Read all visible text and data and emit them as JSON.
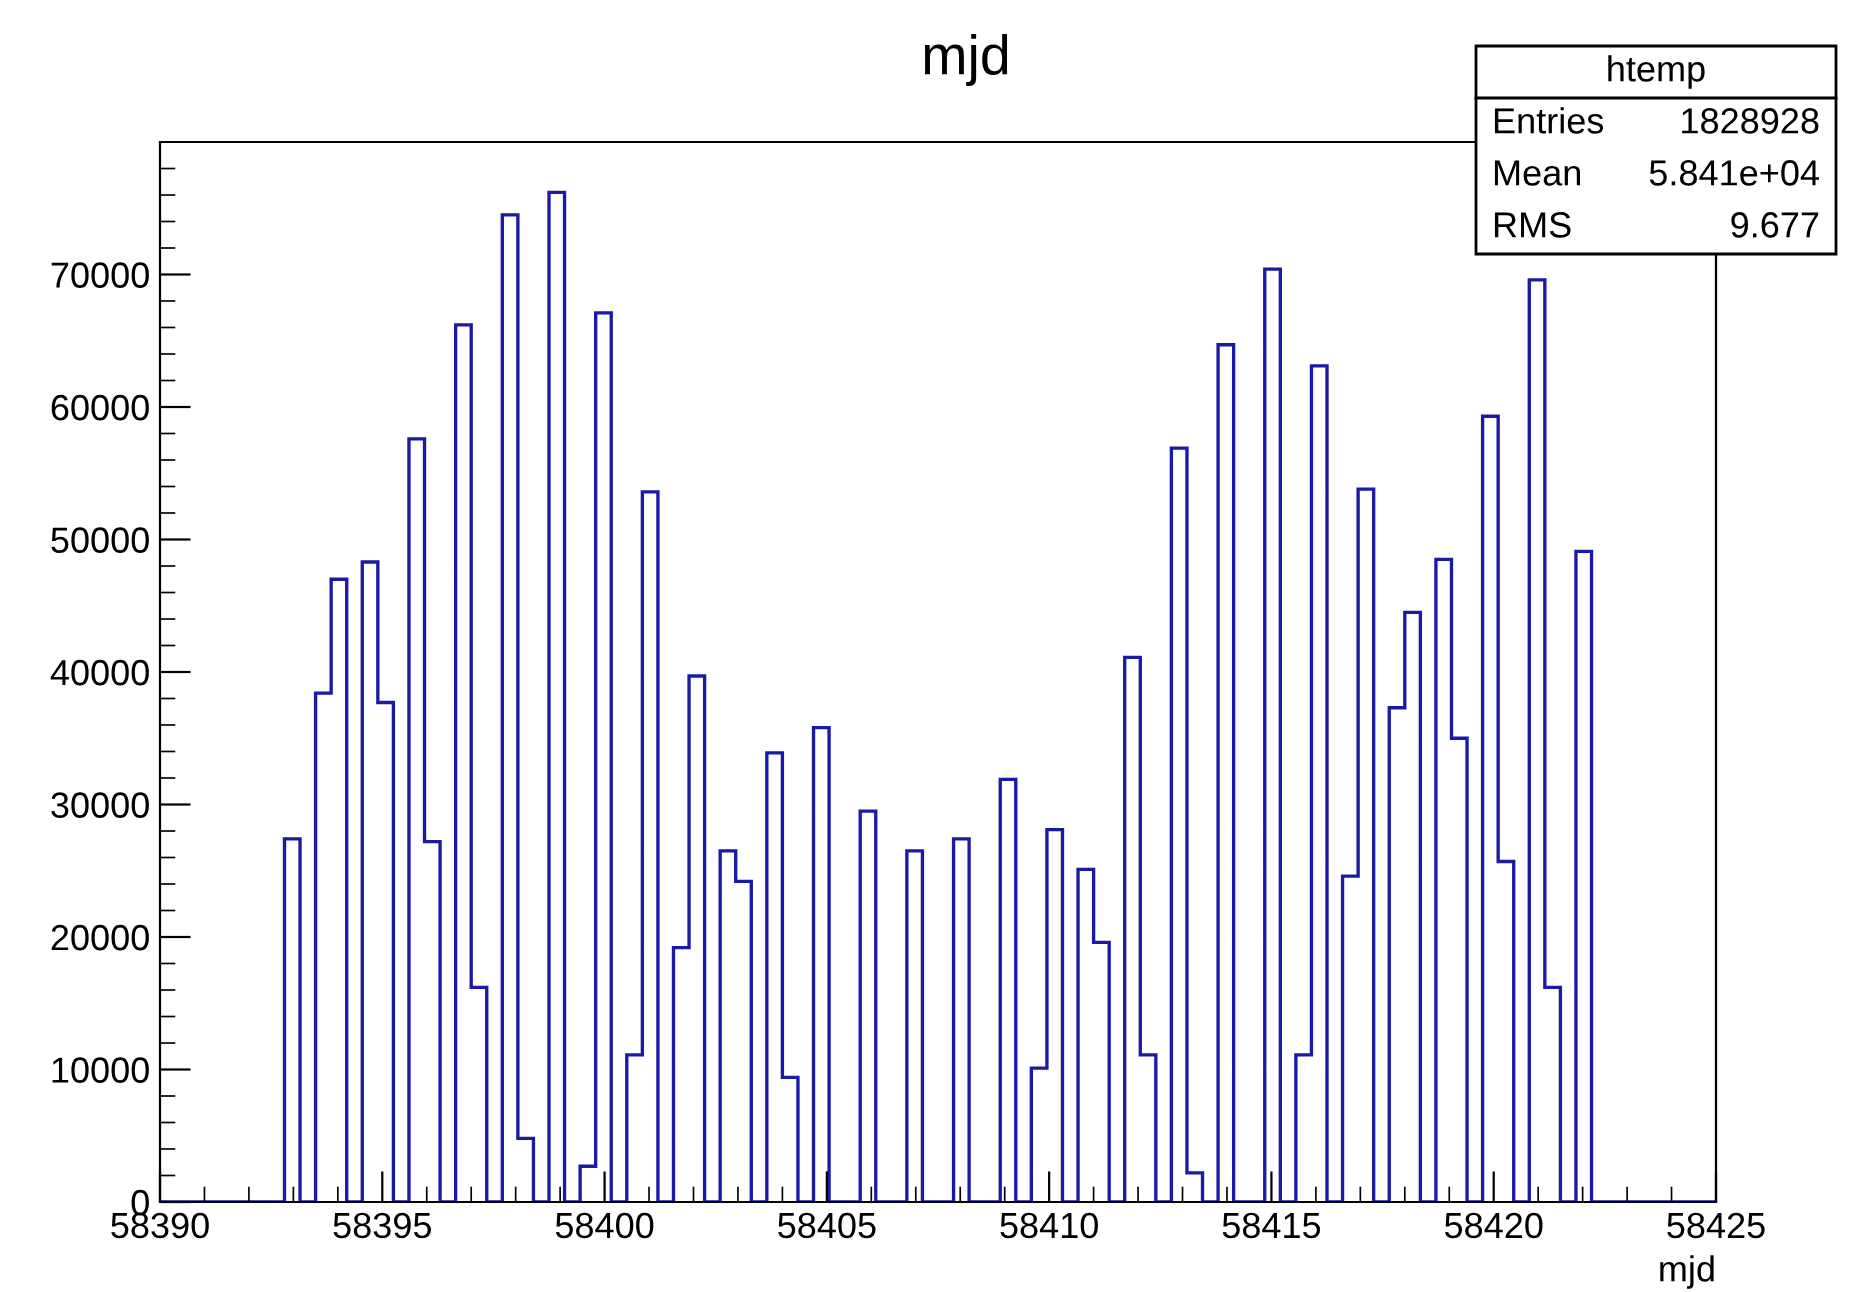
{
  "chart_data": {
    "type": "histogram",
    "title": "mjd",
    "xlabel": "mjd",
    "color": "#1a1aa6",
    "bins": [
      58390,
      58390.35,
      58390.7,
      58391.05,
      58391.4,
      58391.75,
      58392.1,
      58392.45,
      58392.8,
      58393.15,
      58393.5,
      58393.85,
      58394.2,
      58394.55,
      58394.9,
      58395.25,
      58395.6,
      58395.95,
      58396.3,
      58396.65,
      58397,
      58397.35,
      58397.7,
      58398.05,
      58398.4,
      58398.75,
      58399.1,
      58399.45,
      58399.8,
      58400.15,
      58400.5,
      58400.85,
      58401.2,
      58401.55,
      58401.9,
      58402.25,
      58402.6,
      58402.95,
      58403.3,
      58403.65,
      58404,
      58404.35,
      58404.7,
      58405.05,
      58405.4,
      58405.75,
      58406.1,
      58406.45,
      58406.8,
      58407.15,
      58407.5,
      58407.85,
      58408.2,
      58408.55,
      58408.9,
      58409.25,
      58409.6,
      58409.95,
      58410.3,
      58410.65,
      58411,
      58411.35,
      58411.7,
      58412.05,
      58412.4,
      58412.75,
      58413.1,
      58413.45,
      58413.8,
      58414.15,
      58414.5,
      58414.85,
      58415.2,
      58415.55,
      58415.9,
      58416.25,
      58416.6,
      58416.95,
      58417.3,
      58417.65,
      58418,
      58418.35,
      58418.7,
      58419.05,
      58419.4,
      58419.75,
      58420.1,
      58420.45,
      58420.8,
      58421.15,
      58421.5,
      58421.85,
      58422.2,
      58422.55,
      58422.9,
      58423.25,
      58423.6,
      58423.95,
      58424.3,
      58424.65,
      58425
    ],
    "values": [
      0,
      0,
      0,
      0,
      0,
      0,
      0,
      0,
      27400,
      0,
      38400,
      47000,
      0,
      48300,
      37700,
      0,
      57600,
      27200,
      0,
      66200,
      16200,
      0,
      74500,
      4800,
      0,
      76200,
      0,
      2700,
      67100,
      0,
      11100,
      53600,
      0,
      19200,
      39700,
      0,
      26500,
      24200,
      0,
      33900,
      9400,
      0,
      35800,
      0,
      0,
      29500,
      0,
      0,
      26500,
      0,
      0,
      27400,
      0,
      0,
      31900,
      0,
      10100,
      28100,
      0,
      25100,
      19600,
      0,
      41100,
      11100,
      0,
      56900,
      2200,
      0,
      64700,
      0,
      0,
      70400,
      0,
      11100,
      63100,
      0,
      24600,
      53800,
      0,
      37300,
      44500,
      0,
      48500,
      35000,
      0,
      59300,
      25700,
      0,
      69600,
      16200,
      0,
      49100,
      0,
      0,
      0,
      0,
      0,
      0,
      0,
      0
    ],
    "xlim": [
      58390,
      58425
    ],
    "xticks": [
      58390,
      58395,
      58400,
      58405,
      58410,
      58415,
      58420,
      58425
    ],
    "ylim": [
      0,
      80000
    ],
    "yticks": [
      0,
      10000,
      20000,
      30000,
      40000,
      50000,
      60000,
      70000
    ],
    "grid": false,
    "annotations": [
      "htemp",
      "Entries",
      "1828928",
      "Mean",
      "5.841e+04",
      "RMS",
      "9.677"
    ]
  }
}
